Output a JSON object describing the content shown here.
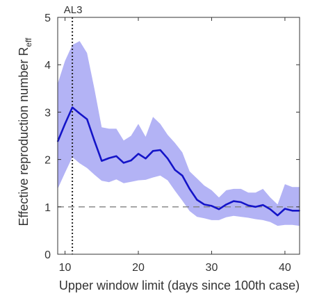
{
  "chart_data": {
    "type": "line",
    "xlabel": "Upper window limit (days since 100th case)",
    "ylabel_main": "Effective reproduction number R",
    "ylabel_sub": "eff",
    "xlim": [
      9,
      42
    ],
    "ylim": [
      0,
      5
    ],
    "xticks": [
      10,
      20,
      30,
      40
    ],
    "yticks": [
      0,
      1,
      2,
      3,
      4,
      5
    ],
    "grid": false,
    "reference_line": {
      "y": 1,
      "style": "dashed"
    },
    "annotation": {
      "label": "AL3",
      "x": 11
    },
    "series": [
      {
        "x": [
          9,
          10,
          11,
          12,
          13,
          14,
          15,
          16,
          17,
          18,
          19,
          20,
          21,
          22,
          23,
          24,
          25,
          26,
          27,
          28,
          29,
          30,
          31,
          32,
          33,
          34,
          35,
          36,
          37,
          38,
          39,
          40,
          41,
          42
        ],
        "y": [
          2.38,
          2.75,
          3.1,
          2.97,
          2.85,
          2.4,
          1.97,
          2.03,
          2.07,
          1.93,
          1.98,
          2.12,
          2.02,
          2.18,
          2.2,
          2.02,
          1.78,
          1.66,
          1.38,
          1.15,
          1.05,
          1.02,
          0.95,
          1.05,
          1.12,
          1.1,
          1.03,
          1.0,
          1.04,
          0.95,
          0.82,
          0.96,
          0.92,
          0.92
        ],
        "lower": [
          1.38,
          1.72,
          2.05,
          1.92,
          1.82,
          1.68,
          1.55,
          1.52,
          1.58,
          1.5,
          1.53,
          1.56,
          1.57,
          1.62,
          1.66,
          1.56,
          1.34,
          1.13,
          0.91,
          0.79,
          0.76,
          0.72,
          0.72,
          0.78,
          0.81,
          0.79,
          0.77,
          0.74,
          0.72,
          0.68,
          0.6,
          0.62,
          0.62,
          0.6
        ],
        "upper": [
          3.6,
          4.08,
          4.42,
          4.5,
          4.25,
          3.5,
          2.68,
          2.65,
          2.65,
          2.4,
          2.5,
          2.75,
          2.48,
          2.9,
          2.75,
          2.52,
          2.35,
          2.15,
          1.75,
          1.6,
          1.45,
          1.35,
          1.2,
          1.35,
          1.38,
          1.38,
          1.3,
          1.3,
          1.38,
          1.2,
          1.05,
          1.48,
          1.42,
          1.42
        ]
      }
    ],
    "colors": {
      "line": "#1414c8",
      "band": "#b3b3f5",
      "reference": "#808080",
      "axis": "#333333"
    }
  }
}
